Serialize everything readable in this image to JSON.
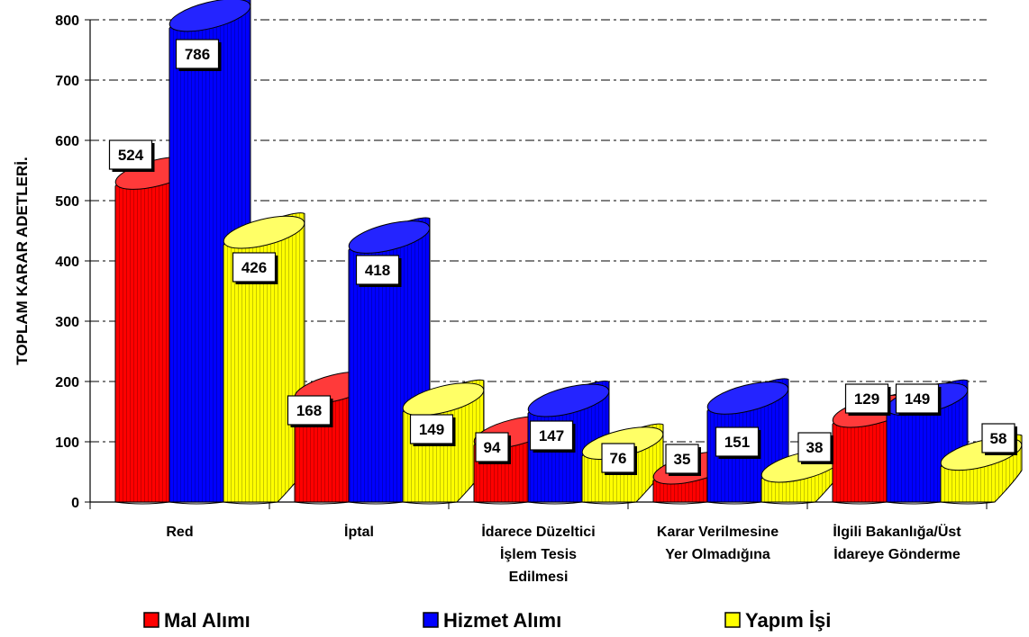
{
  "chart_data": {
    "type": "bar",
    "ylabel": "TOPLAM KARAR ADETLERİ.",
    "ylim": [
      0,
      800
    ],
    "yticks": [
      "0",
      "100",
      "200",
      "300",
      "400",
      "500",
      "600",
      "700",
      "800"
    ],
    "categories": [
      [
        "Red"
      ],
      [
        "İptal"
      ],
      [
        "İdarece Düzeltici",
        "İşlem Tesis",
        "Edilmesi"
      ],
      [
        "Karar Verilmesine",
        "Yer Olmadığına"
      ],
      [
        "İlgili Bakanlığa/Üst",
        "İdareye Gönderme"
      ]
    ],
    "series": [
      {
        "name": "Mal Alımı",
        "color": "#ff0000",
        "values": [
          524,
          168,
          94,
          35,
          129
        ]
      },
      {
        "name": "Hizmet Alımı",
        "color": "#0000ff",
        "values": [
          786,
          418,
          147,
          151,
          149
        ]
      },
      {
        "name": "Yapım İşi",
        "color": "#ffff00",
        "values": [
          426,
          149,
          76,
          38,
          58
        ]
      }
    ],
    "grid": true,
    "legend_position": "bottom"
  }
}
